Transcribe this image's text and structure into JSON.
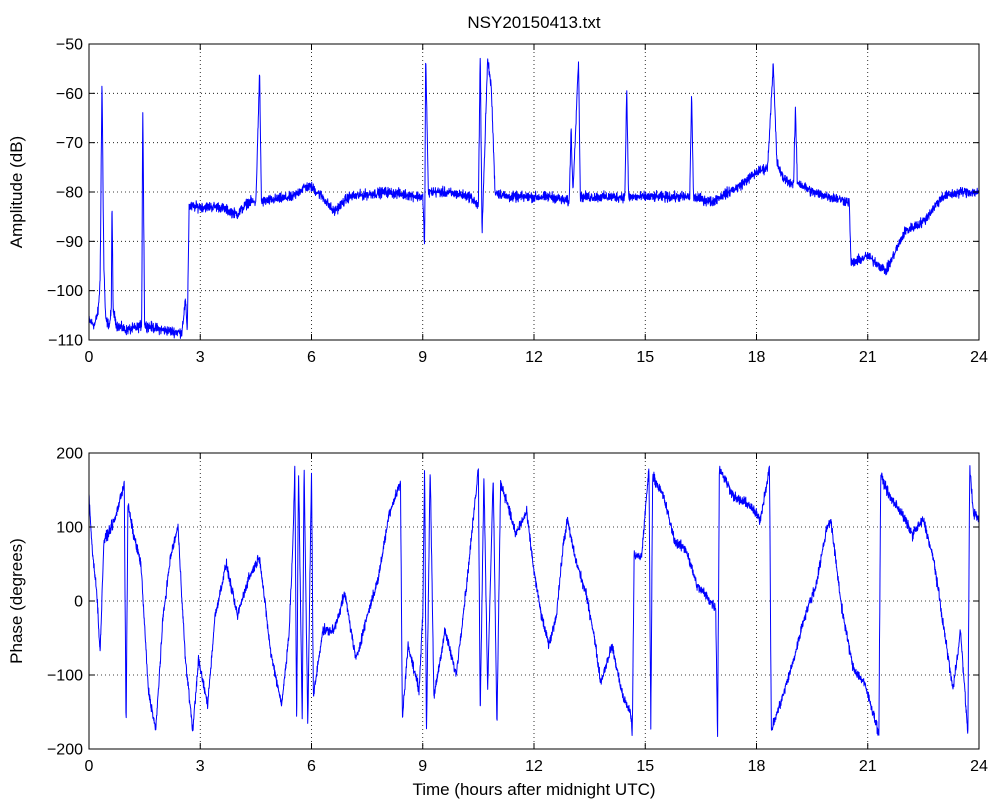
{
  "figure_title": "NSY20150413.txt",
  "colors": {
    "series": "#0000ff",
    "axes": "#000000",
    "grid": "#000000",
    "background": "#ffffff"
  },
  "chart_data": [
    {
      "type": "line",
      "title": "NSY20150413.txt",
      "xlabel": "",
      "ylabel": "Amplitude (dB)",
      "xlim": [
        0,
        24
      ],
      "ylim": [
        -110,
        -50
      ],
      "xticks": [
        0,
        3,
        6,
        9,
        12,
        15,
        18,
        21,
        24
      ],
      "yticks": [
        -110,
        -100,
        -90,
        -80,
        -70,
        -60,
        -50
      ],
      "grid": true,
      "series": [
        {
          "color": "#0000ff",
          "noise": 1.5,
          "points": [
            [
              0,
              -106
            ],
            [
              0.15,
              -107
            ],
            [
              0.25,
              -104
            ],
            [
              0.3,
              -98
            ],
            [
              0.35,
              -57
            ],
            [
              0.4,
              -95
            ],
            [
              0.45,
              -106
            ],
            [
              0.55,
              -107
            ],
            [
              0.6,
              -104
            ],
            [
              0.62,
              -81
            ],
            [
              0.65,
              -104
            ],
            [
              0.75,
              -107
            ],
            [
              1.0,
              -108
            ],
            [
              1.3,
              -107.5
            ],
            [
              1.42,
              -107
            ],
            [
              1.45,
              -62
            ],
            [
              1.5,
              -107
            ],
            [
              2.0,
              -108
            ],
            [
              2.5,
              -108.5
            ],
            [
              2.6,
              -102
            ],
            [
              2.65,
              -108
            ],
            [
              2.7,
              -83
            ],
            [
              3.0,
              -83
            ],
            [
              3.5,
              -83
            ],
            [
              4.0,
              -84.5
            ],
            [
              4.3,
              -82
            ],
            [
              4.5,
              -82
            ],
            [
              4.6,
              -56
            ],
            [
              4.65,
              -82
            ],
            [
              5.0,
              -81.5
            ],
            [
              5.5,
              -81
            ],
            [
              5.8,
              -79
            ],
            [
              6.0,
              -79
            ],
            [
              6.3,
              -81
            ],
            [
              6.6,
              -84
            ],
            [
              7.0,
              -81
            ],
            [
              7.5,
              -80.5
            ],
            [
              8.0,
              -80
            ],
            [
              8.5,
              -80.5
            ],
            [
              9.0,
              -81
            ],
            [
              9.05,
              -91
            ],
            [
              9.08,
              -52
            ],
            [
              9.15,
              -80
            ],
            [
              9.5,
              -80
            ],
            [
              10.0,
              -80.5
            ],
            [
              10.3,
              -81
            ],
            [
              10.5,
              -83
            ],
            [
              10.55,
              -52
            ],
            [
              10.6,
              -88
            ],
            [
              10.75,
              -53
            ],
            [
              10.85,
              -59
            ],
            [
              10.95,
              -80
            ],
            [
              11.3,
              -81
            ],
            [
              12.0,
              -81
            ],
            [
              12.5,
              -81
            ],
            [
              12.95,
              -82
            ],
            [
              13.0,
              -67
            ],
            [
              13.05,
              -80
            ],
            [
              13.2,
              -53
            ],
            [
              13.25,
              -81
            ],
            [
              14.0,
              -81
            ],
            [
              14.45,
              -81
            ],
            [
              14.5,
              -59
            ],
            [
              14.55,
              -81
            ],
            [
              15.0,
              -81
            ],
            [
              16.0,
              -81
            ],
            [
              16.2,
              -81
            ],
            [
              16.25,
              -60
            ],
            [
              16.3,
              -81
            ],
            [
              16.8,
              -82
            ],
            [
              17.0,
              -81
            ],
            [
              17.5,
              -79
            ],
            [
              18.0,
              -76
            ],
            [
              18.3,
              -75
            ],
            [
              18.45,
              -54
            ],
            [
              18.55,
              -74
            ],
            [
              18.7,
              -77
            ],
            [
              19.0,
              -78.5
            ],
            [
              19.05,
              -63
            ],
            [
              19.1,
              -78
            ],
            [
              19.5,
              -80
            ],
            [
              20.0,
              -81
            ],
            [
              20.5,
              -82
            ],
            [
              20.55,
              -94.5
            ],
            [
              20.7,
              -94
            ],
            [
              21.0,
              -93
            ],
            [
              21.5,
              -96
            ],
            [
              22.0,
              -88
            ],
            [
              22.5,
              -86
            ],
            [
              23.0,
              -81
            ],
            [
              23.5,
              -80
            ],
            [
              24.0,
              -80
            ]
          ]
        }
      ]
    },
    {
      "type": "line",
      "title": "",
      "xlabel": "Time (hours after midnight UTC)",
      "ylabel": "Phase (degrees)",
      "xlim": [
        0,
        24
      ],
      "ylim": [
        -200,
        200
      ],
      "xticks": [
        0,
        3,
        6,
        9,
        12,
        15,
        18,
        21,
        24
      ],
      "yticks": [
        -200,
        -100,
        0,
        100,
        200
      ],
      "grid": true,
      "series": [
        {
          "color": "#0000ff",
          "noise": 10,
          "points": [
            [
              0,
              140
            ],
            [
              0.1,
              60
            ],
            [
              0.2,
              20
            ],
            [
              0.3,
              -70
            ],
            [
              0.4,
              80
            ],
            [
              0.7,
              110
            ],
            [
              0.95,
              160
            ],
            [
              1.0,
              -175
            ],
            [
              1.05,
              130
            ],
            [
              1.2,
              90
            ],
            [
              1.4,
              50
            ],
            [
              1.6,
              -120
            ],
            [
              1.8,
              -175
            ],
            [
              2.0,
              -20
            ],
            [
              2.2,
              60
            ],
            [
              2.4,
              100
            ],
            [
              2.6,
              -80
            ],
            [
              2.8,
              -175
            ],
            [
              2.95,
              -80
            ],
            [
              3.2,
              -140
            ],
            [
              3.4,
              -20
            ],
            [
              3.7,
              50
            ],
            [
              4.0,
              -20
            ],
            [
              4.3,
              30
            ],
            [
              4.6,
              60
            ],
            [
              4.9,
              -70
            ],
            [
              5.2,
              -140
            ],
            [
              5.4,
              -40
            ],
            [
              5.5,
              80
            ],
            [
              5.55,
              180
            ],
            [
              5.6,
              -170
            ],
            [
              5.65,
              180
            ],
            [
              5.75,
              -160
            ],
            [
              5.8,
              180
            ],
            [
              5.9,
              -170
            ],
            [
              6.0,
              180
            ],
            [
              6.05,
              -130
            ],
            [
              6.3,
              -40
            ],
            [
              6.6,
              -40
            ],
            [
              6.9,
              10
            ],
            [
              7.2,
              -80
            ],
            [
              7.5,
              -20
            ],
            [
              7.8,
              30
            ],
            [
              8.1,
              120
            ],
            [
              8.4,
              160
            ],
            [
              8.45,
              -160
            ],
            [
              8.6,
              -60
            ],
            [
              8.9,
              -120
            ],
            [
              9.0,
              -20
            ],
            [
              9.05,
              180
            ],
            [
              9.1,
              -180
            ],
            [
              9.2,
              180
            ],
            [
              9.3,
              -130
            ],
            [
              9.6,
              -40
            ],
            [
              9.9,
              -100
            ],
            [
              10.2,
              30
            ],
            [
              10.4,
              130
            ],
            [
              10.5,
              180
            ],
            [
              10.55,
              -150
            ],
            [
              10.65,
              170
            ],
            [
              10.75,
              -120
            ],
            [
              10.9,
              170
            ],
            [
              11.0,
              -170
            ],
            [
              11.1,
              160
            ],
            [
              11.3,
              130
            ],
            [
              11.5,
              90
            ],
            [
              11.8,
              120
            ],
            [
              12.0,
              40
            ],
            [
              12.2,
              -20
            ],
            [
              12.4,
              -60
            ],
            [
              12.6,
              -20
            ],
            [
              12.8,
              80
            ],
            [
              12.9,
              110
            ],
            [
              13.1,
              60
            ],
            [
              13.4,
              10
            ],
            [
              13.6,
              -40
            ],
            [
              13.8,
              -110
            ],
            [
              14.1,
              -60
            ],
            [
              14.4,
              -130
            ],
            [
              14.6,
              -150
            ],
            [
              14.65,
              -180
            ],
            [
              14.7,
              60
            ],
            [
              14.9,
              60
            ],
            [
              15.1,
              180
            ],
            [
              15.15,
              -170
            ],
            [
              15.2,
              170
            ],
            [
              15.5,
              140
            ],
            [
              15.8,
              80
            ],
            [
              16.1,
              70
            ],
            [
              16.4,
              20
            ],
            [
              16.6,
              10
            ],
            [
              16.9,
              -10
            ],
            [
              16.95,
              -180
            ],
            [
              17.0,
              180
            ],
            [
              17.4,
              140
            ],
            [
              17.8,
              130
            ],
            [
              18.1,
              110
            ],
            [
              18.35,
              180
            ],
            [
              18.4,
              -175
            ],
            [
              18.7,
              -130
            ],
            [
              19.0,
              -80
            ],
            [
              19.3,
              -20
            ],
            [
              19.6,
              20
            ],
            [
              19.9,
              100
            ],
            [
              20.0,
              110
            ],
            [
              20.3,
              -10
            ],
            [
              20.6,
              -90
            ],
            [
              20.9,
              -110
            ],
            [
              21.2,
              -160
            ],
            [
              21.3,
              -180
            ],
            [
              21.35,
              170
            ],
            [
              21.6,
              140
            ],
            [
              21.9,
              120
            ],
            [
              22.2,
              90
            ],
            [
              22.5,
              110
            ],
            [
              22.8,
              50
            ],
            [
              23.0,
              -20
            ],
            [
              23.3,
              -120
            ],
            [
              23.5,
              -40
            ],
            [
              23.7,
              -180
            ],
            [
              23.75,
              180
            ],
            [
              23.85,
              120
            ],
            [
              24.0,
              110
            ]
          ]
        }
      ]
    }
  ]
}
